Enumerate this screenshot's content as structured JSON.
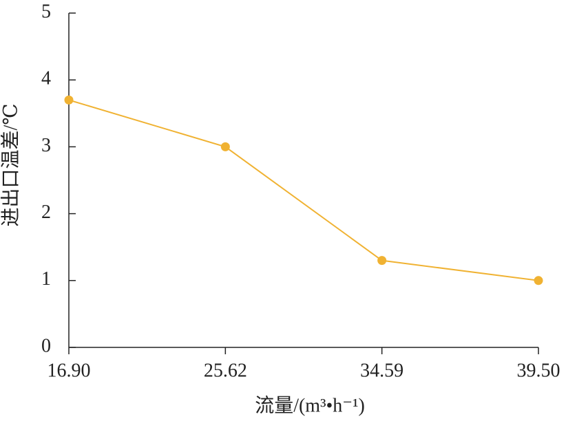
{
  "chart_data": {
    "type": "line",
    "x_label": "流量/(m³•h⁻¹)",
    "y_label": "进出口温差/℃",
    "categories": [
      "16.90",
      "25.62",
      "34.59",
      "39.50"
    ],
    "values": [
      3.7,
      3.0,
      1.3,
      1.0
    ],
    "color": "#f0b232",
    "ylim": [
      0,
      5
    ],
    "yticks": [
      0,
      1,
      2,
      3,
      4,
      5
    ],
    "grid": false
  }
}
